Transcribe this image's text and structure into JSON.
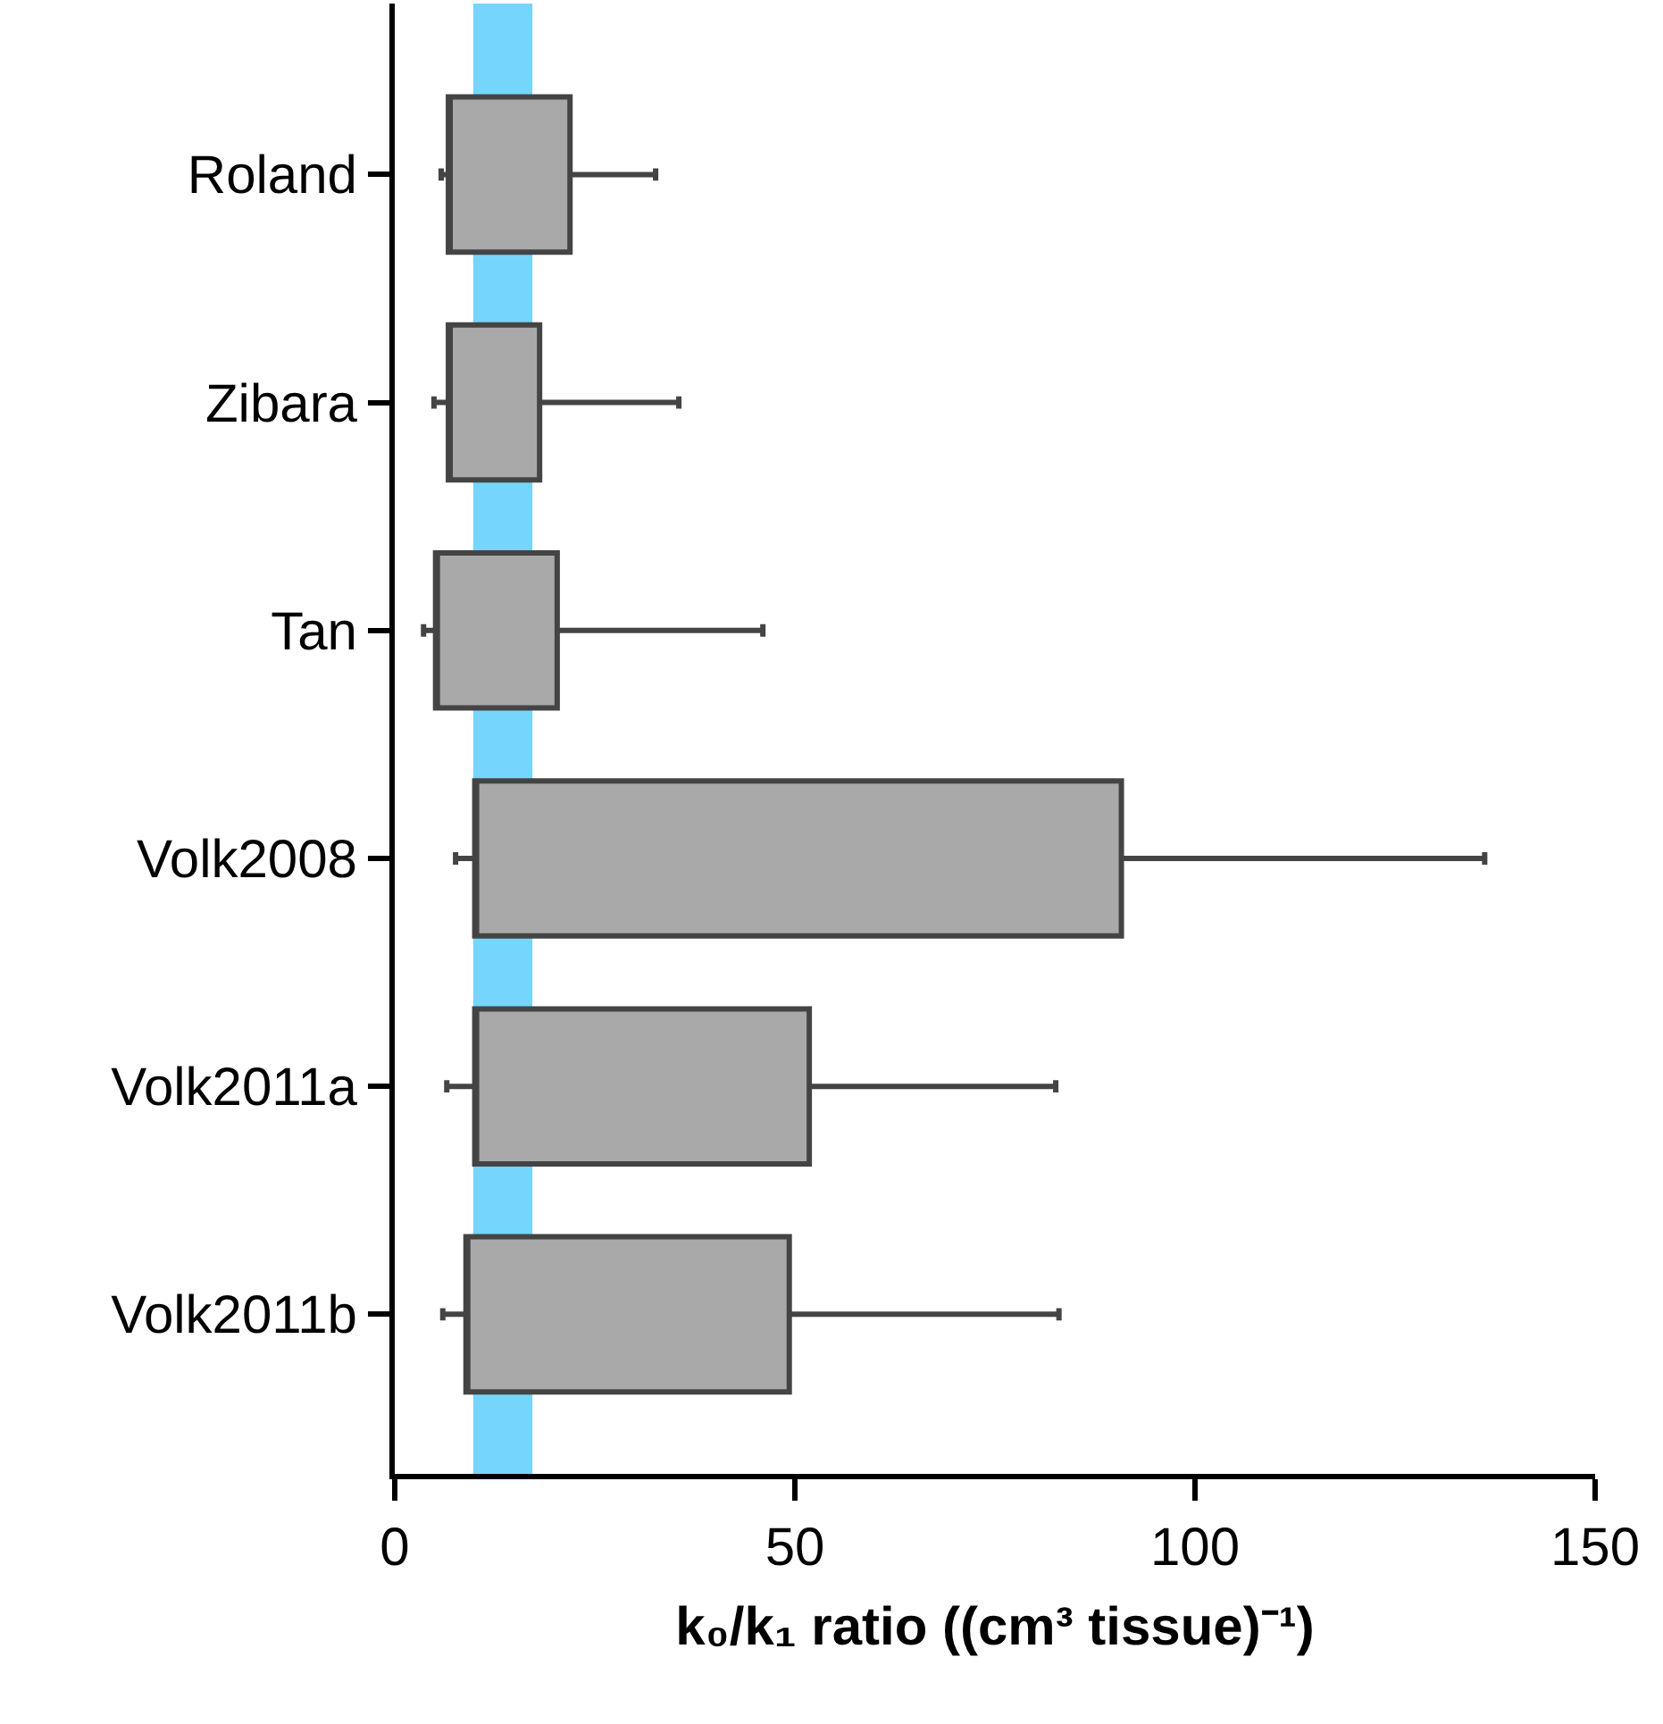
{
  "chart_data": {
    "type": "box",
    "orientation": "horizontal",
    "xlabel": "k₀/k₁ ratio ((cm³ tissue)⁻¹)",
    "categories": [
      "Roland",
      "Zibara",
      "Tan",
      "Volk2008",
      "Volk2011a",
      "Volk2011b"
    ],
    "boxes": [
      {
        "low": 5.8,
        "q1": 6.7,
        "median": 6.7,
        "q3": 21.9,
        "high": 32.6
      },
      {
        "low": 4.9,
        "q1": 6.7,
        "median": 6.7,
        "q3": 18.1,
        "high": 35.5
      },
      {
        "low": 3.6,
        "q1": 5.1,
        "median": 5.1,
        "q3": 20.3,
        "high": 46.0
      },
      {
        "low": 7.6,
        "q1": 10.0,
        "median": 10.0,
        "q3": 90.8,
        "high": 136.2
      },
      {
        "low": 6.5,
        "q1": 10.0,
        "median": 10.0,
        "q3": 51.8,
        "high": 82.6
      },
      {
        "low": 6.0,
        "q1": 8.9,
        "median": 8.9,
        "q3": 49.3,
        "high": 83.0
      }
    ],
    "color": "#a9a9a9",
    "xlim": [
      0,
      150
    ],
    "xticks": [
      0,
      50,
      100,
      150
    ],
    "bands": [
      {
        "axis": "x",
        "from": 9.8,
        "to": 17.2,
        "color": "#75d5fd"
      }
    ]
  }
}
